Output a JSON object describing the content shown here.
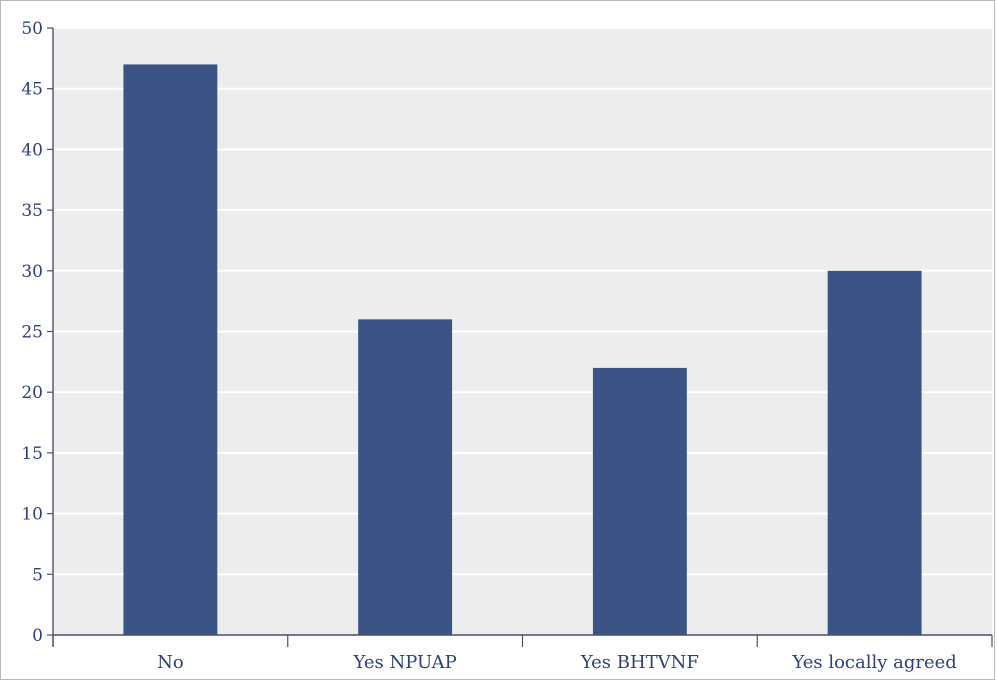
{
  "chart_data": {
    "type": "bar",
    "title": "",
    "xlabel": "",
    "ylabel": "",
    "categories": [
      "No",
      "Yes NPUAP",
      "Yes BHTVNF",
      "Yes locally agreed"
    ],
    "values": [
      47,
      26,
      22,
      30
    ],
    "ylim": [
      0,
      50
    ],
    "yticks": [
      "0",
      "5",
      "10",
      "15",
      "20",
      "25",
      "30",
      "35",
      "40",
      "45",
      "50"
    ],
    "grid": true,
    "legend": "none",
    "colors": {
      "bar": "#3b5485",
      "plot_background": "#ededed",
      "gridline": "#ffffff",
      "axis": "#4a4f6a",
      "text": "#2f3f7a"
    }
  }
}
